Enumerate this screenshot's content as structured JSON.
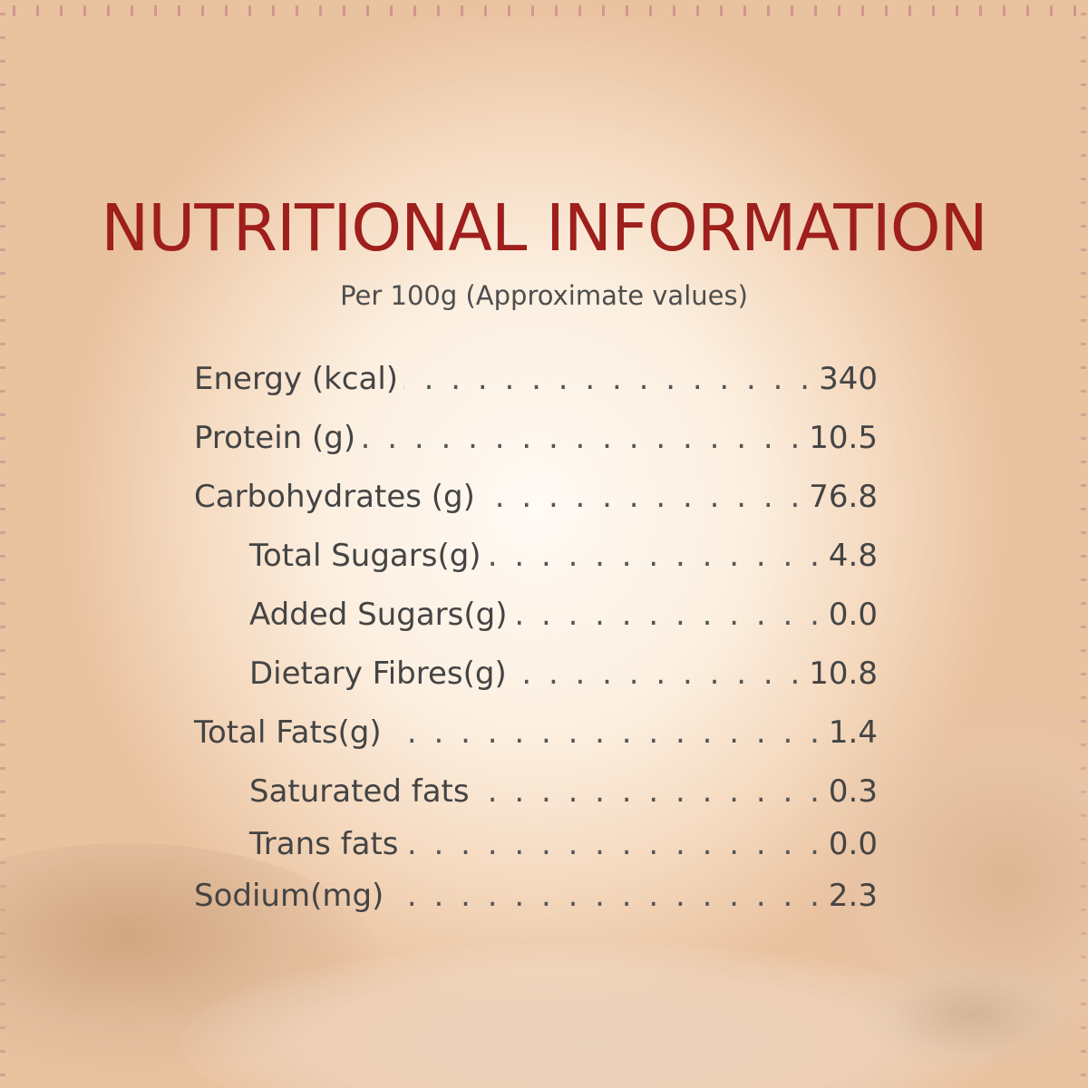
{
  "title": "NUTRITIONAL INFORMATION",
  "subtitle": "Per 100g (Approximate values)",
  "nutrients": [
    {
      "label": "Energy (kcal)",
      "value": "340",
      "indent": 0
    },
    {
      "label": "Protein (g)",
      "value": "10.5",
      "indent": 0
    },
    {
      "label": "Carbohydrates (g)",
      "value": "76.8",
      "indent": 0
    },
    {
      "label": "Total Sugars(g)",
      "value": "4.8",
      "indent": 1
    },
    {
      "label": "Added Sugars(g)",
      "value": "0.0",
      "indent": 1
    },
    {
      "label": "Dietary Fibres(g)",
      "value": "10.8",
      "indent": 1
    },
    {
      "label": "Total Fats(g)",
      "value": "1.4",
      "indent": 0
    },
    {
      "label": "Saturated fats",
      "value": "0.3",
      "indent": 1
    },
    {
      "label": "Trans fats",
      "value": "0.0",
      "indent": 1
    },
    {
      "label": "Sodium(mg)",
      "value": "2.3",
      "indent": 0
    }
  ],
  "colors": {
    "title": "#9e1f1c",
    "text": "#444444",
    "background": "#fcefe0"
  }
}
